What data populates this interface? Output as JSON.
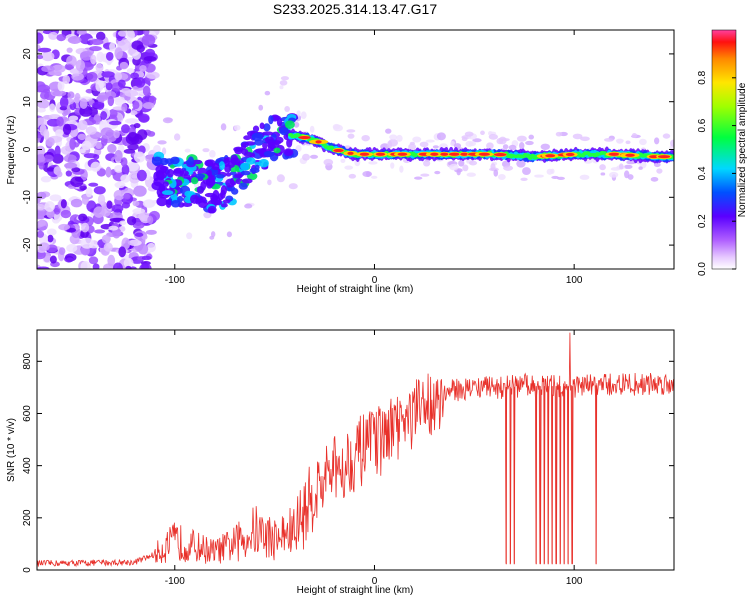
{
  "title": "S233.2025.314.13.47.G17",
  "chart_data": [
    {
      "type": "heatmap",
      "name": "spectrogram",
      "xlabel": "Height of straight line (km)",
      "ylabel": "Frequency (Hz)",
      "xlim": [
        -169,
        150
      ],
      "ylim": [
        -25,
        25
      ],
      "xticks": [
        -100,
        0,
        100
      ],
      "yticks": [
        -20,
        -10,
        0,
        10,
        20
      ],
      "colorbar": {
        "label": "Normalized spectral amplitude",
        "range": [
          0,
          1
        ],
        "ticks": [
          "0.0",
          "0.2",
          "0.4",
          "0.6",
          "0.8"
        ]
      },
      "ridge": [
        {
          "x": -110,
          "f": -6
        },
        {
          "x": -100,
          "f": -7
        },
        {
          "x": -90,
          "f": -7
        },
        {
          "x": -80,
          "f": -8
        },
        {
          "x": -70,
          "f": -6
        },
        {
          "x": -60,
          "f": 0
        },
        {
          "x": -50,
          "f": 2
        },
        {
          "x": -40,
          "f": 3
        },
        {
          "x": -30,
          "f": 2
        },
        {
          "x": -20,
          "f": 0
        },
        {
          "x": -10,
          "f": -1
        },
        {
          "x": 0,
          "f": -1
        },
        {
          "x": 20,
          "f": -1
        },
        {
          "x": 40,
          "f": -1
        },
        {
          "x": 60,
          "f": -1
        },
        {
          "x": 80,
          "f": -1.5
        },
        {
          "x": 100,
          "f": -1
        },
        {
          "x": 120,
          "f": -1
        },
        {
          "x": 140,
          "f": -1.5
        },
        {
          "x": 150,
          "f": -1.5
        }
      ]
    },
    {
      "type": "line",
      "name": "snr",
      "xlabel": "Height of straight line (km)",
      "ylabel": "SNR (10 * v/v)",
      "xlim": [
        -169,
        150
      ],
      "ylim": [
        0,
        920
      ],
      "xticks": [
        -100,
        0,
        100
      ],
      "yticks": [
        0,
        200,
        400,
        600,
        800
      ],
      "color": "#e8302a",
      "envelope": [
        {
          "x": -169,
          "y": 25
        },
        {
          "x": -120,
          "y": 30
        },
        {
          "x": -110,
          "y": 60
        },
        {
          "x": -100,
          "y": 110
        },
        {
          "x": -90,
          "y": 90
        },
        {
          "x": -80,
          "y": 70
        },
        {
          "x": -70,
          "y": 100
        },
        {
          "x": -60,
          "y": 150
        },
        {
          "x": -50,
          "y": 120
        },
        {
          "x": -40,
          "y": 150
        },
        {
          "x": -30,
          "y": 300
        },
        {
          "x": -20,
          "y": 380
        },
        {
          "x": -10,
          "y": 440
        },
        {
          "x": 0,
          "y": 480
        },
        {
          "x": 10,
          "y": 530
        },
        {
          "x": 20,
          "y": 590
        },
        {
          "x": 30,
          "y": 660
        },
        {
          "x": 40,
          "y": 690
        },
        {
          "x": 50,
          "y": 700
        },
        {
          "x": 60,
          "y": 700
        },
        {
          "x": 80,
          "y": 705
        },
        {
          "x": 100,
          "y": 705
        },
        {
          "x": 120,
          "y": 710
        },
        {
          "x": 150,
          "y": 715
        }
      ],
      "dropouts": [
        66,
        68,
        70,
        81,
        83,
        85,
        87,
        89,
        91,
        93,
        95,
        97,
        99,
        111
      ]
    }
  ]
}
